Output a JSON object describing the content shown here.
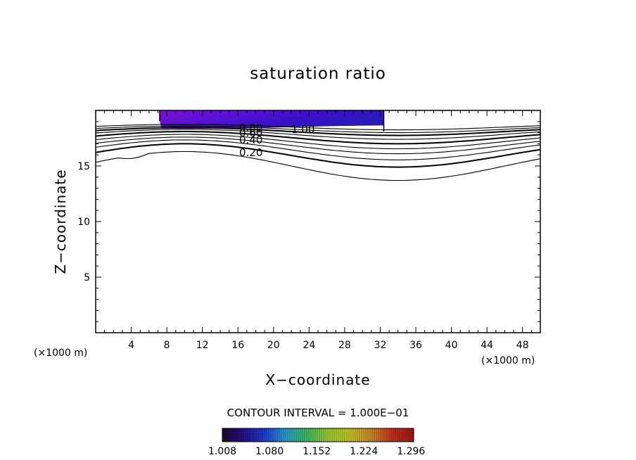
{
  "chart_data": {
    "type": "contour",
    "title": "saturation ratio",
    "xlabel": "X−coordinate",
    "ylabel": "Z−coordinate",
    "x_unit": "(×1000 m)",
    "x_range": [
      0,
      50
    ],
    "y_range": [
      0,
      20
    ],
    "x_ticks": [
      "4",
      "8",
      "12",
      "16",
      "20",
      "24",
      "28",
      "32",
      "36",
      "40",
      "44",
      "48"
    ],
    "y_ticks": [
      "5",
      "10",
      "15"
    ],
    "contour_labels": [
      "0.80",
      "0.60",
      "0.40",
      "0.20",
      "1.00"
    ],
    "contour_interval_text": "CONTOUR INTERVAL = 1.000E−01",
    "colorbar_ticks": [
      "1.008",
      "1.080",
      "1.152",
      "1.224",
      "1.296"
    ],
    "colorbar_range": [
      1.008,
      1.3
    ],
    "colorbar_colors": [
      "#1c0a2a",
      "#2a0f8a",
      "#1e3fd8",
      "#2f9fd0",
      "#3fbf60",
      "#9fcf30",
      "#c8c828",
      "#d08a28",
      "#c83020",
      "#a01818"
    ],
    "filled_region_colors": [
      "#7a0fcf",
      "#5a12d6",
      "#3a10c8",
      "#2a1ab8"
    ],
    "contours": [
      {
        "value": 1.0,
        "base": 18.5,
        "amp": -0.25
      },
      {
        "value": 0.9,
        "base": 18.3,
        "amp": -0.3
      },
      {
        "value": 0.8,
        "base": 18.1,
        "amp": -0.35
      },
      {
        "value": 0.7,
        "base": 17.85,
        "amp": -0.45
      },
      {
        "value": 0.6,
        "base": 17.55,
        "amp": -0.55
      },
      {
        "value": 0.5,
        "base": 17.2,
        "amp": -0.65
      },
      {
        "value": 0.4,
        "base": 16.85,
        "amp": -0.75
      },
      {
        "value": 0.3,
        "base": 16.45,
        "amp": -0.9
      },
      {
        "value": 0.2,
        "base": 15.95,
        "amp": -1.05
      },
      {
        "value": 0.1,
        "base": 15.0,
        "amp": -1.3
      }
    ]
  }
}
